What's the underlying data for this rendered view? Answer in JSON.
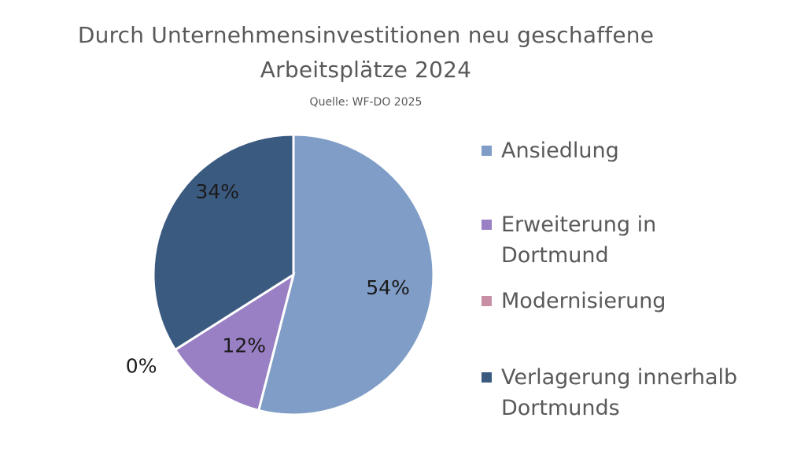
{
  "header": {
    "title_line1": "Durch Unternehmensinvestitionen  neu geschaffene",
    "title_line2": "Arbeitsplätze  2024",
    "source": "Quelle: WF-DO 2025"
  },
  "colors": {
    "ansiedlung": "#7f9dc6",
    "erweiterung": "#9980c4",
    "modernisierung": "#c78ea6",
    "verlagerung": "#3b5a80",
    "text": "#595959",
    "label_dark": "#1a1a1a"
  },
  "chart_data": {
    "type": "pie",
    "title": "Durch Unternehmensinvestitionen  neu geschaffene Arbeitsplätze  2024",
    "subtitle": "Quelle: WF-DO 2025",
    "legend_position": "right",
    "slices": [
      {
        "label": "Ansiedlung",
        "value": 54,
        "display": "54%",
        "color": "#7f9dc6"
      },
      {
        "label": "Erweiterung in Dortmund",
        "value": 12,
        "display": "12%",
        "color": "#9980c4"
      },
      {
        "label": "Modernisierung",
        "value": 0,
        "display": "0%",
        "color": "#c78ea6"
      },
      {
        "label": "Verlagerung innerhalb Dortmunds",
        "value": 34,
        "display": "34%",
        "color": "#3b5a80"
      }
    ]
  },
  "legend": [
    {
      "line1": "Ansiedlung",
      "line2": ""
    },
    {
      "line1": "Erweiterung in",
      "line2": "Dortmund"
    },
    {
      "line1": "Modernisierung",
      "line2": ""
    },
    {
      "line1": "Verlagerung innerhalb",
      "line2": "Dortmunds"
    }
  ]
}
